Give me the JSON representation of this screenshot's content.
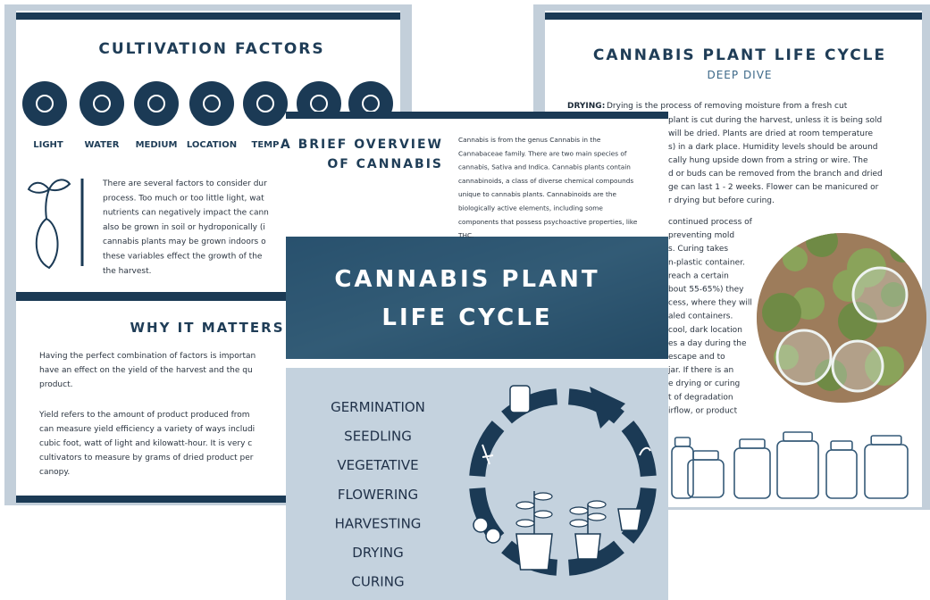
{
  "left_page": {
    "title": "CULTIVATION FACTORS",
    "factors": [
      "LIGHT",
      "WATER",
      "MEDIUM",
      "LOCATION",
      "TEMP"
    ],
    "intro_lines": [
      "There are several factors to consider dur",
      "process. Too much or too little light, wat",
      "nutrients can negatively impact the cann",
      "also be grown in soil or hydroponically (i",
      "cannabis plants may be grown indoors o",
      "these variables effect the growth of the",
      "the harvest."
    ],
    "section_title": "WHY IT MATTERS",
    "section_lines": [
      "Having the perfect combination of factors is importan",
      "have an effect on the yield of the harvest and the qu",
      "product.",
      "Yield refers to the amount of product produced from",
      "can measure yield efficiency a variety of ways includi",
      "cubic foot, watt of light and kilowatt-hour. It is very c",
      "cultivators to measure by grams of dried product per",
      "canopy."
    ]
  },
  "right_page": {
    "title": "CANNABIS PLANT LIFE CYCLE",
    "subtitle": "DEEP DIVE",
    "drying_label": "DRYING:",
    "drying_first_line": "Drying is the process of removing moisture from a fresh cut",
    "drying_lines": [
      "plant is cut during the harvest, unless it is being sold",
      "will be dried. Plants are dried at room temperature",
      "s) in a dark place. Humidity levels should be around",
      "cally hung upside down from a string or wire. The",
      "d or buds can be removed from the branch and dried",
      "ge can last 1 - 2 weeks. Flower can be manicured or",
      "r drying but before curing."
    ],
    "curing_lines": [
      "continued process of",
      "preventing mold",
      "s. Curing takes",
      "n-plastic container.",
      "reach a certain",
      "bout 55-65%) they",
      "cess, where they will",
      "aled containers.",
      "cool, dark location",
      "es a day during the",
      "escape and to",
      "jar. If there is an",
      "e drying or curing",
      "t of degradation",
      "irflow, or product"
    ]
  },
  "middle_page": {
    "heading_lines": [
      "A BRIEF OVERVIEW",
      "OF CANNABIS"
    ],
    "overview_lines": [
      "Cannabis is from the genus Cannabis in the",
      "Cannabaceae family. There are two main species of",
      "cannabis, Sativa and Indica. Cannabis plants contain",
      "cannabinoids, a class of diverse chemical compounds",
      "unique to cannabis plants. Cannabinoids are the",
      "biologically active elements, including some",
      "components that possess psychoactive properties, like",
      "THC."
    ],
    "banner_lines": [
      "CANNABIS PLANT",
      "LIFE CYCLE"
    ],
    "stages": [
      "GERMINATION",
      "SEEDLING",
      "VEGETATIVE",
      "FLOWERING",
      "HARVESTING",
      "DRYING",
      "CURING"
    ]
  }
}
